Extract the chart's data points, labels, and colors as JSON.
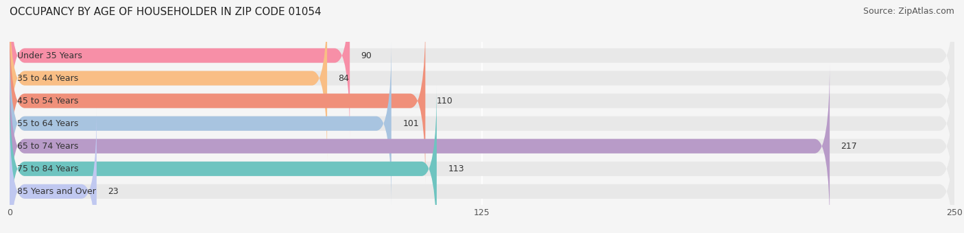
{
  "title": "OCCUPANCY BY AGE OF HOUSEHOLDER IN ZIP CODE 01054",
  "source": "Source: ZipAtlas.com",
  "categories": [
    "Under 35 Years",
    "35 to 44 Years",
    "45 to 54 Years",
    "55 to 64 Years",
    "65 to 74 Years",
    "75 to 84 Years",
    "85 Years and Over"
  ],
  "values": [
    90,
    84,
    110,
    101,
    217,
    113,
    23
  ],
  "bar_colors": [
    "#F78FA7",
    "#F9BE85",
    "#F0907A",
    "#A8C4E0",
    "#B89BC8",
    "#6EC4C0",
    "#C0C8F0"
  ],
  "xlim": [
    0,
    250
  ],
  "xticks": [
    0,
    125,
    250
  ],
  "background_color": "#f5f5f5",
  "bar_background_color": "#e8e8e8",
  "title_fontsize": 11,
  "source_fontsize": 9,
  "label_fontsize": 9,
  "value_fontsize": 9,
  "tick_fontsize": 9
}
